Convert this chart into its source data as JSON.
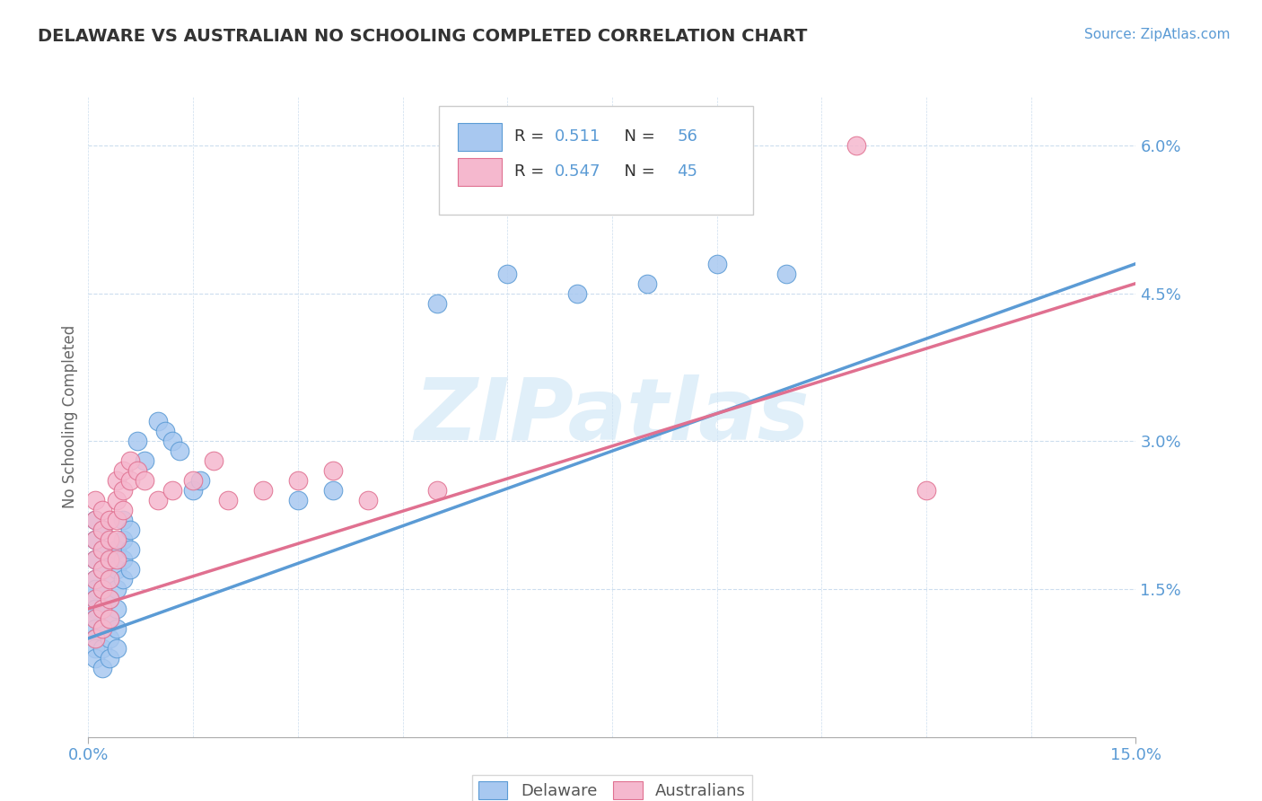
{
  "title": "DELAWARE VS AUSTRALIAN NO SCHOOLING COMPLETED CORRELATION CHART",
  "source": "Source: ZipAtlas.com",
  "ylabel": "No Schooling Completed",
  "xlim": [
    0.0,
    0.15
  ],
  "ylim": [
    0.0,
    0.065
  ],
  "delaware_color": "#a8c8f0",
  "delaware_edge": "#5b9bd5",
  "australian_color": "#f5b8ce",
  "australian_edge": "#e07090",
  "line_del_color": "#5b9bd5",
  "line_aus_color": "#e07090",
  "watermark_color": "#cce5f5",
  "tick_color": "#5b9bd5",
  "title_color": "#333333",
  "source_color": "#5b9bd5",
  "ylabel_color": "#666666",
  "grid_color": "#ccddee",
  "delaware_line": [
    [
      0.0,
      0.01
    ],
    [
      0.15,
      0.048
    ]
  ],
  "australian_line": [
    [
      0.0,
      0.013
    ],
    [
      0.15,
      0.046
    ]
  ],
  "delaware_points": [
    [
      0.001,
      0.022
    ],
    [
      0.001,
      0.02
    ],
    [
      0.001,
      0.018
    ],
    [
      0.001,
      0.016
    ],
    [
      0.001,
      0.015
    ],
    [
      0.001,
      0.014
    ],
    [
      0.001,
      0.013
    ],
    [
      0.001,
      0.012
    ],
    [
      0.001,
      0.011
    ],
    [
      0.001,
      0.01
    ],
    [
      0.001,
      0.009
    ],
    [
      0.001,
      0.008
    ],
    [
      0.002,
      0.021
    ],
    [
      0.002,
      0.019
    ],
    [
      0.002,
      0.017
    ],
    [
      0.002,
      0.015
    ],
    [
      0.002,
      0.013
    ],
    [
      0.002,
      0.011
    ],
    [
      0.002,
      0.009
    ],
    [
      0.002,
      0.007
    ],
    [
      0.003,
      0.018
    ],
    [
      0.003,
      0.016
    ],
    [
      0.003,
      0.014
    ],
    [
      0.003,
      0.012
    ],
    [
      0.003,
      0.01
    ],
    [
      0.003,
      0.008
    ],
    [
      0.004,
      0.019
    ],
    [
      0.004,
      0.017
    ],
    [
      0.004,
      0.015
    ],
    [
      0.004,
      0.013
    ],
    [
      0.004,
      0.011
    ],
    [
      0.004,
      0.009
    ],
    [
      0.005,
      0.022
    ],
    [
      0.005,
      0.02
    ],
    [
      0.005,
      0.018
    ],
    [
      0.005,
      0.016
    ],
    [
      0.006,
      0.021
    ],
    [
      0.006,
      0.019
    ],
    [
      0.006,
      0.017
    ],
    [
      0.007,
      0.03
    ],
    [
      0.008,
      0.028
    ],
    [
      0.01,
      0.032
    ],
    [
      0.011,
      0.031
    ],
    [
      0.012,
      0.03
    ],
    [
      0.013,
      0.029
    ],
    [
      0.015,
      0.025
    ],
    [
      0.016,
      0.026
    ],
    [
      0.03,
      0.024
    ],
    [
      0.035,
      0.025
    ],
    [
      0.05,
      0.044
    ],
    [
      0.06,
      0.047
    ],
    [
      0.07,
      0.045
    ],
    [
      0.08,
      0.046
    ],
    [
      0.09,
      0.048
    ],
    [
      0.1,
      0.047
    ]
  ],
  "australian_points": [
    [
      0.001,
      0.024
    ],
    [
      0.001,
      0.022
    ],
    [
      0.001,
      0.02
    ],
    [
      0.001,
      0.018
    ],
    [
      0.001,
      0.016
    ],
    [
      0.001,
      0.014
    ],
    [
      0.001,
      0.012
    ],
    [
      0.001,
      0.01
    ],
    [
      0.002,
      0.023
    ],
    [
      0.002,
      0.021
    ],
    [
      0.002,
      0.019
    ],
    [
      0.002,
      0.017
    ],
    [
      0.002,
      0.015
    ],
    [
      0.002,
      0.013
    ],
    [
      0.002,
      0.011
    ],
    [
      0.003,
      0.022
    ],
    [
      0.003,
      0.02
    ],
    [
      0.003,
      0.018
    ],
    [
      0.003,
      0.016
    ],
    [
      0.003,
      0.014
    ],
    [
      0.003,
      0.012
    ],
    [
      0.004,
      0.026
    ],
    [
      0.004,
      0.024
    ],
    [
      0.004,
      0.022
    ],
    [
      0.004,
      0.02
    ],
    [
      0.004,
      0.018
    ],
    [
      0.005,
      0.027
    ],
    [
      0.005,
      0.025
    ],
    [
      0.005,
      0.023
    ],
    [
      0.006,
      0.028
    ],
    [
      0.006,
      0.026
    ],
    [
      0.007,
      0.027
    ],
    [
      0.008,
      0.026
    ],
    [
      0.01,
      0.024
    ],
    [
      0.012,
      0.025
    ],
    [
      0.015,
      0.026
    ],
    [
      0.018,
      0.028
    ],
    [
      0.02,
      0.024
    ],
    [
      0.025,
      0.025
    ],
    [
      0.03,
      0.026
    ],
    [
      0.035,
      0.027
    ],
    [
      0.04,
      0.024
    ],
    [
      0.05,
      0.025
    ],
    [
      0.11,
      0.06
    ],
    [
      0.12,
      0.025
    ]
  ]
}
